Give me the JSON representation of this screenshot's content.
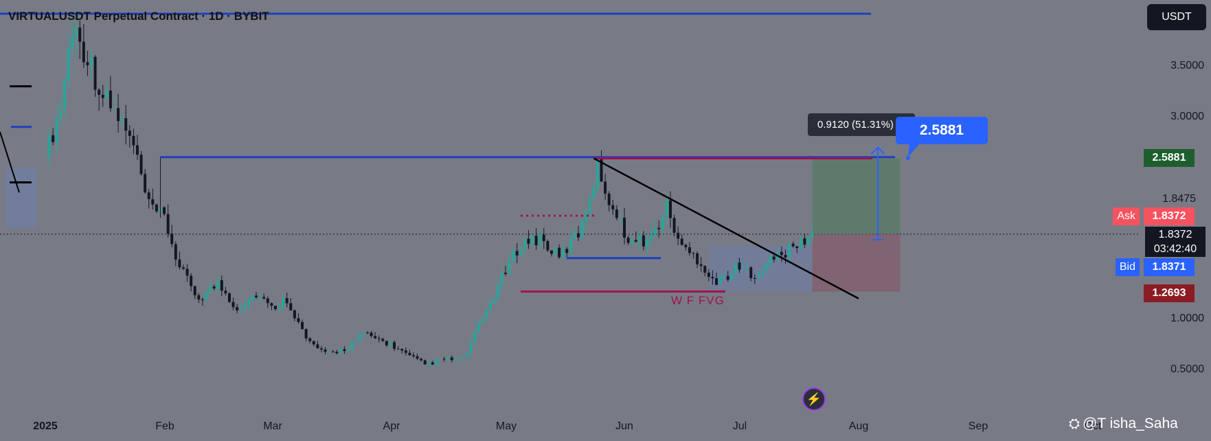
{
  "header": {
    "title": "VIRTUALUSDT Perpetual Contract · 1D · BYBIT"
  },
  "currency_button": "USDT",
  "colors": {
    "background": "#787b86",
    "up": "#26a69a",
    "down": "#131722",
    "bid": "#2962ff",
    "ask": "#f23645",
    "target": "#1e5e2e",
    "stop": "#8b1c24",
    "trend_line": "#000000",
    "resistance_line": "#1f3fbf",
    "fvg_line": "#a0124e"
  },
  "y_axis": {
    "labels": [
      "3.5000",
      "3.0000",
      "1.0000",
      "0.5000"
    ]
  },
  "x_axis": {
    "labels": [
      "2025",
      "Feb",
      "Mar",
      "Apr",
      "May",
      "Jun",
      "Jul",
      "Aug",
      "Sep",
      "Oct"
    ]
  },
  "price_tags": {
    "target": "2.5881",
    "high_level": "1.8475",
    "ask_label": "Ask",
    "ask": "1.8372",
    "last": "1.8372",
    "countdown": "03:42:40",
    "bid_label": "Bid",
    "bid": "1.8371",
    "stop": "1.2693"
  },
  "measurement": {
    "text": "0.9120 (51.31%) 9,"
  },
  "target_callout": "2.5881",
  "annotations": {
    "fvg": "W F FVG"
  },
  "watermark": {
    "logo": "⛭",
    "text": "@T isha_Saha"
  },
  "icons": {
    "flash": "lightning-icon",
    "logo": "binance-square-icon"
  },
  "chart_data": {
    "type": "candlestick",
    "title": "VIRTUALUSDT Perpetual Contract · 1D · BYBIT",
    "timeframe": "1D",
    "x": [
      "2025",
      "Feb",
      "Mar",
      "Apr",
      "May",
      "Jun",
      "Jul",
      "Aug",
      "Sep",
      "Oct"
    ],
    "close_path": [
      [
        "2025-01-01",
        2.6
      ],
      [
        "2025-01-05",
        3.1
      ],
      [
        "2025-01-08",
        3.9
      ],
      [
        "2025-01-12",
        3.6
      ],
      [
        "2025-01-16",
        3.2
      ],
      [
        "2025-01-20",
        3.0
      ],
      [
        "2025-01-24",
        2.7
      ],
      [
        "2025-01-28",
        2.1
      ],
      [
        "2025-02-01",
        2.0
      ],
      [
        "2025-02-05",
        1.5
      ],
      [
        "2025-02-10",
        1.2
      ],
      [
        "2025-02-15",
        1.35
      ],
      [
        "2025-02-20",
        1.1
      ],
      [
        "2025-02-25",
        1.25
      ],
      [
        "2025-03-01",
        1.1
      ],
      [
        "2025-03-05",
        1.2
      ],
      [
        "2025-03-10",
        0.8
      ],
      [
        "2025-03-15",
        0.65
      ],
      [
        "2025-03-20",
        0.7
      ],
      [
        "2025-03-25",
        0.85
      ],
      [
        "2025-04-01",
        0.75
      ],
      [
        "2025-04-05",
        0.65
      ],
      [
        "2025-04-10",
        0.55
      ],
      [
        "2025-04-15",
        0.6
      ],
      [
        "2025-04-20",
        0.6
      ],
      [
        "2025-04-25",
        1.0
      ],
      [
        "2025-04-30",
        1.4
      ],
      [
        "2025-05-05",
        1.75
      ],
      [
        "2025-05-10",
        1.8
      ],
      [
        "2025-05-15",
        1.6
      ],
      [
        "2025-05-20",
        1.85
      ],
      [
        "2025-05-25",
        2.5
      ],
      [
        "2025-05-30",
        2.0
      ],
      [
        "2025-06-03",
        1.75
      ],
      [
        "2025-06-08",
        1.8
      ],
      [
        "2025-06-12",
        2.1
      ],
      [
        "2025-06-16",
        1.7
      ],
      [
        "2025-06-20",
        1.6
      ],
      [
        "2025-06-25",
        1.35
      ],
      [
        "2025-06-30",
        1.5
      ],
      [
        "2025-07-05",
        1.45
      ],
      [
        "2025-07-10",
        1.6
      ],
      [
        "2025-07-15",
        1.7
      ],
      [
        "2025-07-20",
        1.8372
      ]
    ],
    "levels": {
      "resistance": 2.6,
      "target": 2.5881,
      "range_low": 1.2693,
      "range_mid": 1.6
    },
    "position": {
      "entry": 1.8372,
      "target": 2.5881,
      "stop": 1.2693,
      "change": 0.912,
      "change_pct": 51.31
    }
  }
}
